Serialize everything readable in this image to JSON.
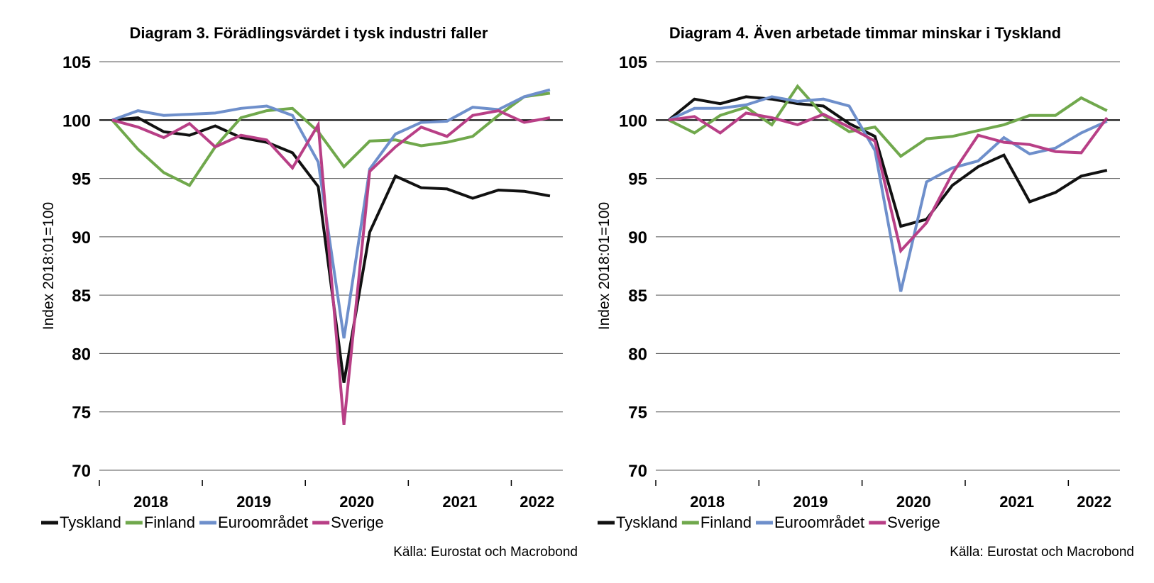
{
  "colors": {
    "Tyskland": "#111111",
    "Finland": "#70a84c",
    "Euroområdet": "#6e8fcb",
    "Sverige": "#b83f86"
  },
  "chart_data": [
    {
      "type": "line",
      "title": "Diagram 3. Förädlingsvärdet i tysk industri faller",
      "ylabel": "Index 2018:01=100",
      "ylim": [
        70,
        105
      ],
      "yticks": [
        70,
        75,
        80,
        85,
        90,
        95,
        100,
        105
      ],
      "x": [
        "2018Q1",
        "2018Q2",
        "2018Q3",
        "2018Q4",
        "2019Q1",
        "2019Q2",
        "2019Q3",
        "2019Q4",
        "2020Q1",
        "2020Q2",
        "2020Q3",
        "2020Q4",
        "2021Q1",
        "2021Q2",
        "2021Q3",
        "2021Q4",
        "2022Q1",
        "2022Q2"
      ],
      "year_labels": [
        "2018",
        "2019",
        "2020",
        "2021",
        "2022"
      ],
      "source": "Källa: Eurostat och Macrobond",
      "series": [
        {
          "name": "Tyskland",
          "values": [
            100.0,
            100.2,
            99.0,
            98.7,
            99.5,
            98.5,
            98.1,
            97.2,
            94.3,
            77.5,
            90.4,
            95.2,
            94.2,
            94.1,
            93.3,
            94.0,
            93.9,
            93.5
          ]
        },
        {
          "name": "Finland",
          "values": [
            100.0,
            97.5,
            95.5,
            94.4,
            97.7,
            100.2,
            100.8,
            101.0,
            99.0,
            96.0,
            98.2,
            98.3,
            97.8,
            98.1,
            98.6,
            100.4,
            102.0,
            102.3
          ]
        },
        {
          "name": "Euroområdet",
          "values": [
            100.0,
            100.8,
            100.4,
            100.5,
            100.6,
            101.0,
            101.2,
            100.4,
            96.4,
            81.3,
            95.8,
            98.8,
            99.8,
            99.9,
            101.1,
            100.9,
            102.0,
            102.6
          ]
        },
        {
          "name": "Sverige",
          "values": [
            100.0,
            99.4,
            98.5,
            99.7,
            97.7,
            98.7,
            98.3,
            95.9,
            99.6,
            73.9,
            95.6,
            97.7,
            99.4,
            98.6,
            100.4,
            100.8,
            99.8,
            100.2
          ]
        }
      ]
    },
    {
      "type": "line",
      "title": "Diagram 4. Även arbetade timmar minskar i Tyskland",
      "ylabel": "Index 2018:01=100",
      "ylim": [
        70,
        105
      ],
      "yticks": [
        70,
        75,
        80,
        85,
        90,
        95,
        100,
        105
      ],
      "x": [
        "2018Q1",
        "2018Q2",
        "2018Q3",
        "2018Q4",
        "2019Q1",
        "2019Q2",
        "2019Q3",
        "2019Q4",
        "2020Q1",
        "2020Q2",
        "2020Q3",
        "2020Q4",
        "2021Q1",
        "2021Q2",
        "2021Q3",
        "2021Q4",
        "2022Q1",
        "2022Q2"
      ],
      "year_labels": [
        "2018",
        "2019",
        "2020",
        "2021",
        "2022"
      ],
      "source": "Källa: Eurostat och Macrobond",
      "series": [
        {
          "name": "Tyskland",
          "values": [
            100.0,
            101.8,
            101.4,
            102.0,
            101.8,
            101.4,
            101.2,
            99.7,
            98.6,
            90.9,
            91.5,
            94.4,
            96.0,
            97.0,
            93.0,
            93.8,
            95.2,
            95.7
          ]
        },
        {
          "name": "Finland",
          "values": [
            100.0,
            98.9,
            100.4,
            101.1,
            99.6,
            102.9,
            100.4,
            99.0,
            99.4,
            96.9,
            98.4,
            98.6,
            99.1,
            99.6,
            100.4,
            100.4,
            101.9,
            100.8
          ]
        },
        {
          "name": "Euroområdet",
          "values": [
            100.0,
            101.0,
            101.0,
            101.3,
            102.0,
            101.6,
            101.8,
            101.2,
            97.4,
            85.3,
            94.7,
            95.9,
            96.5,
            98.5,
            97.1,
            97.6,
            98.9,
            99.9
          ]
        },
        {
          "name": "Sverige",
          "values": [
            100.0,
            100.3,
            98.9,
            100.6,
            100.2,
            99.6,
            100.5,
            99.4,
            98.2,
            88.8,
            91.2,
            95.4,
            98.7,
            98.1,
            97.9,
            97.3,
            97.2,
            100.2
          ]
        }
      ]
    }
  ]
}
